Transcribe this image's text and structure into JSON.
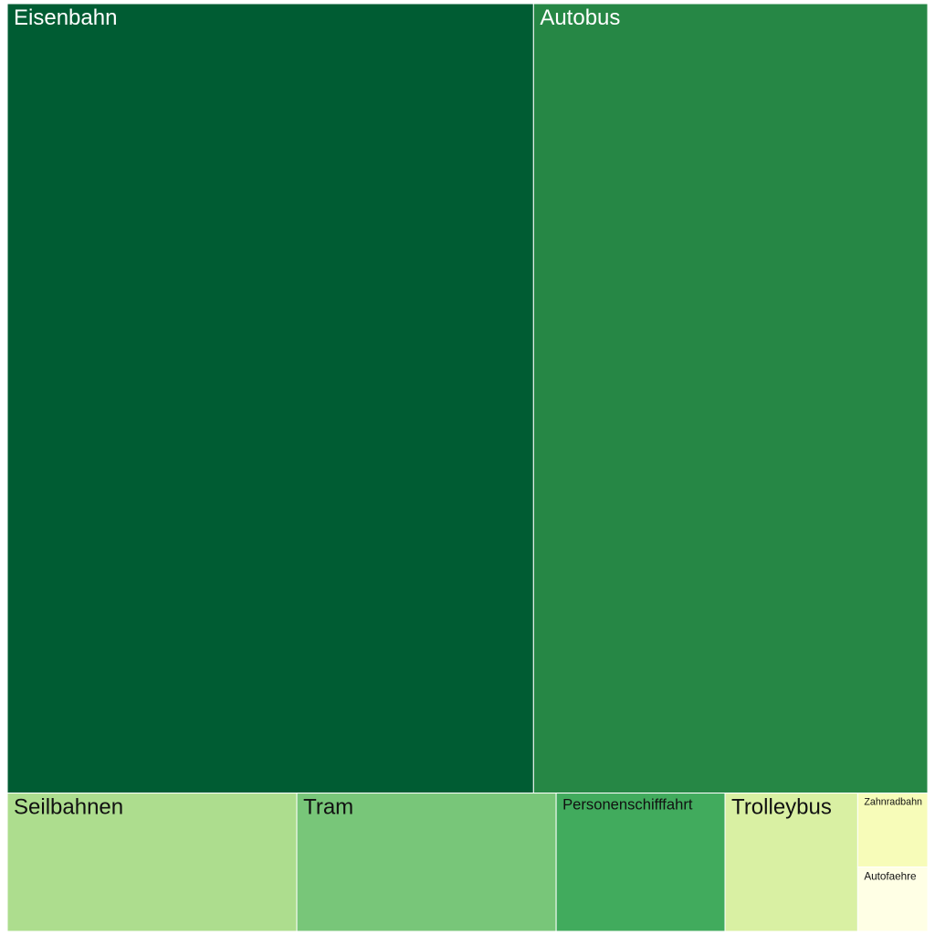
{
  "chart_data": {
    "type": "treemap",
    "categories": [
      "Eisenbahn",
      "Autobus",
      "Seilbahnen",
      "Tram",
      "Personenschifffahrt",
      "Trolleybus",
      "Zahnradbahn",
      "Autofaehre"
    ],
    "values": [
      498,
      373,
      48,
      43,
      28,
      22,
      6.2,
      5.4
    ],
    "colors": [
      "#005c33",
      "#268745",
      "#addd8e",
      "#78c679",
      "#41ab5d",
      "#d9f0a3",
      "#f7fcb9",
      "#ffffe5"
    ]
  }
}
